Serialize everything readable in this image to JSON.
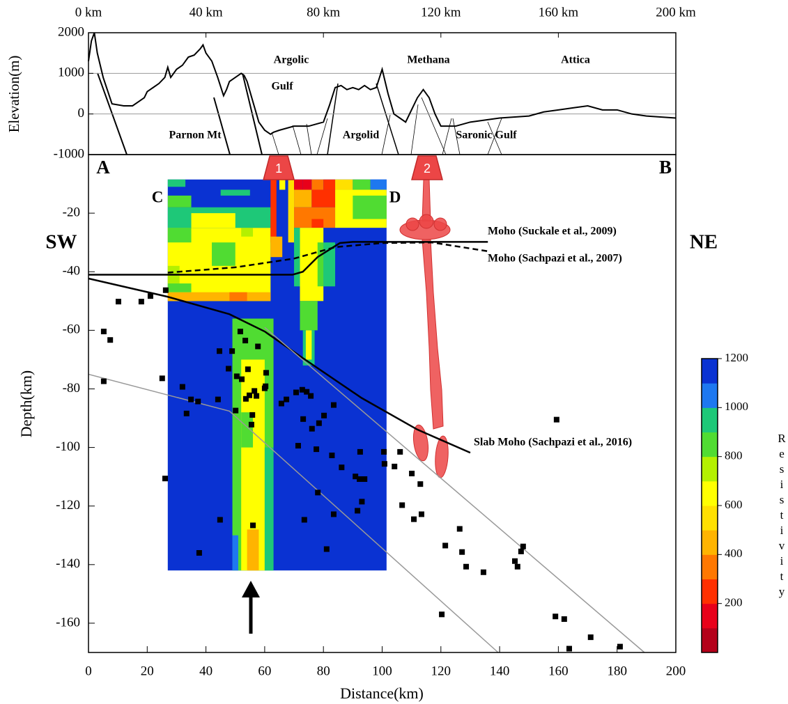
{
  "chart_data": [
    {
      "type": "line",
      "ylabel": "Elevation(m)",
      "xlim": [
        0,
        200
      ],
      "ylim": [
        -1000,
        2000
      ],
      "xticks": [
        {
          "value": 0,
          "label": "0 km"
        },
        {
          "value": 40,
          "label": "40 km"
        },
        {
          "value": 80,
          "label": "80 km"
        },
        {
          "value": 120,
          "label": "120 km"
        },
        {
          "value": 160,
          "label": "160 km"
        },
        {
          "value": 200,
          "label": "200 km"
        }
      ],
      "yticks": [
        -1000,
        0,
        1000,
        2000
      ],
      "grid": true,
      "color": "#000000",
      "x": [
        0,
        1,
        2,
        3,
        5,
        8,
        12,
        15,
        17,
        19,
        20,
        22,
        24,
        26,
        27,
        28,
        30,
        32,
        34,
        36,
        38,
        39,
        40,
        42,
        44,
        46,
        47,
        48,
        50,
        52,
        53,
        54,
        56,
        58,
        60,
        62,
        63,
        65,
        70,
        75,
        80,
        82,
        84,
        86,
        88,
        90,
        92,
        94,
        96,
        98,
        100,
        102,
        104,
        106,
        108,
        110,
        112,
        114,
        116,
        118,
        120,
        125,
        130,
        140,
        150,
        155,
        160,
        165,
        170,
        175,
        180,
        185,
        190,
        200
      ],
      "values": [
        1300,
        1800,
        2000,
        1500,
        900,
        250,
        200,
        200,
        300,
        400,
        550,
        650,
        750,
        900,
        1150,
        900,
        1100,
        1200,
        1400,
        1450,
        1600,
        1700,
        1500,
        1300,
        900,
        450,
        600,
        800,
        900,
        1000,
        950,
        800,
        300,
        -200,
        -400,
        -500,
        -450,
        -400,
        -300,
        -300,
        -200,
        200,
        650,
        700,
        600,
        650,
        600,
        700,
        600,
        650,
        1100,
        500,
        0,
        -100,
        -200,
        100,
        400,
        600,
        400,
        0,
        -300,
        -300,
        -200,
        -100,
        -50,
        50,
        100,
        150,
        200,
        100,
        100,
        0,
        -50,
        -100
      ],
      "annotations": [
        "Argolic",
        "Gulf",
        "Methana",
        "Attica",
        "Parnon Mt",
        "Argolid",
        "Saronic Gulf"
      ]
    },
    {
      "type": "section",
      "xlabel": "Distance(km)",
      "ylabel": "Depth(km)",
      "xlim": [
        0,
        200
      ],
      "ylim": [
        -170,
        0
      ],
      "xticks": [
        0,
        20,
        40,
        60,
        80,
        100,
        120,
        140,
        160,
        180,
        200
      ],
      "yticks": [
        -160,
        -140,
        -120,
        -100,
        -80,
        -60,
        -40,
        -20
      ],
      "annotations": [
        "A",
        "B",
        "C",
        "D",
        "SW",
        "NE"
      ],
      "volcanoes": [
        {
          "label": "1",
          "x": 64.8
        },
        {
          "label": "2",
          "x": 115.3
        }
      ],
      "cells": [
        {
          "x": [
            27,
            101.5
          ],
          "y": [
            -8.5,
            -142
          ],
          "value": 1200
        },
        {
          "x": [
            27,
            62
          ],
          "y": [
            -25,
            -50
          ],
          "value": 600
        },
        {
          "x": [
            27,
            35
          ],
          "y": [
            -25,
            -30
          ],
          "value": 800
        },
        {
          "x": [
            42,
            50
          ],
          "y": [
            -30,
            -38
          ],
          "value": 800
        },
        {
          "x": [
            27,
            31
          ],
          "y": [
            -38,
            -44
          ],
          "value": 700
        },
        {
          "x": [
            52,
            56
          ],
          "y": [
            -25,
            -28
          ],
          "value": 700
        },
        {
          "x": [
            27,
            62
          ],
          "y": [
            -18,
            -25
          ],
          "value": 900
        },
        {
          "x": [
            35,
            50
          ],
          "y": [
            -20,
            -25
          ],
          "value": 650
        },
        {
          "x": [
            27,
            33
          ],
          "y": [
            -8.5,
            -11
          ],
          "value": 950
        },
        {
          "x": [
            27,
            35
          ],
          "y": [
            -14,
            -18
          ],
          "value": 800
        },
        {
          "x": [
            45,
            55
          ],
          "y": [
            -12,
            -14
          ],
          "value": 900
        },
        {
          "x": [
            27,
            62
          ],
          "y": [
            -47,
            -50
          ],
          "value": 450
        },
        {
          "x": [
            27,
            35
          ],
          "y": [
            -44,
            -47
          ],
          "value": 800
        },
        {
          "x": [
            48,
            54
          ],
          "y": [
            -47,
            -50
          ],
          "value": 350
        },
        {
          "x": [
            62,
            64
          ],
          "y": [
            -8.5,
            -30
          ],
          "value": 250
        },
        {
          "x": [
            62,
            66
          ],
          "y": [
            -28,
            -35
          ],
          "value": 400
        },
        {
          "x": [
            65,
            67
          ],
          "y": [
            -8.5,
            -12
          ],
          "value": 600
        },
        {
          "x": [
            68,
            70
          ],
          "y": [
            -8.5,
            -30
          ],
          "value": 550
        },
        {
          "x": [
            70,
            73
          ],
          "y": [
            -8.5,
            -12
          ],
          "value": 150
        },
        {
          "x": [
            73,
            76
          ],
          "y": [
            -8.5,
            -12
          ],
          "value": 100
        },
        {
          "x": [
            76,
            80
          ],
          "y": [
            -8.5,
            -12
          ],
          "value": 350
        },
        {
          "x": [
            80,
            84
          ],
          "y": [
            -8.5,
            -12
          ],
          "value": 200
        },
        {
          "x": [
            84,
            90
          ],
          "y": [
            -8.5,
            -12
          ],
          "value": 550
        },
        {
          "x": [
            90,
            96
          ],
          "y": [
            -8.5,
            -12
          ],
          "value": 800
        },
        {
          "x": [
            96,
            101.5
          ],
          "y": [
            -8.5,
            -12
          ],
          "value": 1050
        },
        {
          "x": [
            70,
            76
          ],
          "y": [
            -12,
            -18
          ],
          "value": 400
        },
        {
          "x": [
            76,
            84
          ],
          "y": [
            -12,
            -18
          ],
          "value": 200
        },
        {
          "x": [
            70,
            84
          ],
          "y": [
            -18,
            -25
          ],
          "value": 350
        },
        {
          "x": [
            84,
            101.5
          ],
          "y": [
            -12,
            -25
          ],
          "value": 600
        },
        {
          "x": [
            90,
            101.5
          ],
          "y": [
            -14,
            -22
          ],
          "value": 850
        },
        {
          "x": [
            76,
            80
          ],
          "y": [
            -22,
            -25
          ],
          "value": 200
        },
        {
          "x": [
            72,
            80
          ],
          "y": [
            -25,
            -50
          ],
          "value": 600
        },
        {
          "x": [
            70,
            72
          ],
          "y": [
            -25,
            -45
          ],
          "value": 900
        },
        {
          "x": [
            78,
            80
          ],
          "y": [
            -30,
            -45
          ],
          "value": 850
        },
        {
          "x": [
            80,
            84
          ],
          "y": [
            -30,
            -45
          ],
          "value": 900
        },
        {
          "x": [
            72,
            78
          ],
          "y": [
            -50,
            -60
          ],
          "value": 850
        },
        {
          "x": [
            73,
            77
          ],
          "y": [
            -60,
            -72
          ],
          "value": 900
        },
        {
          "x": [
            74,
            76
          ],
          "y": [
            -60,
            -70
          ],
          "value": 650
        },
        {
          "x": [
            49,
            63
          ],
          "y": [
            -56,
            -142
          ],
          "value": 850
        },
        {
          "x": [
            52,
            60
          ],
          "y": [
            -70,
            -142
          ],
          "value": 650
        },
        {
          "x": [
            52,
            56
          ],
          "y": [
            -88,
            -100
          ],
          "value": 800
        },
        {
          "x": [
            54,
            58
          ],
          "y": [
            -128,
            -142
          ],
          "value": 450
        },
        {
          "x": [
            60,
            63
          ],
          "y": [
            -100,
            -142
          ],
          "value": 900
        },
        {
          "x": [
            49,
            51
          ],
          "y": [
            -130,
            -142
          ],
          "value": 1050
        }
      ],
      "lines": [
        {
          "name": "Moho (Suckale et al., 2009)",
          "color": "#000000",
          "dash": false,
          "x": [
            0,
            69.5,
            73,
            78,
            85.6,
            90,
            136
          ],
          "y": [
            -41,
            -41,
            -40,
            -35,
            -30.2,
            -29.8,
            -29.8
          ]
        },
        {
          "name": "Moho (Sachpazi et al., 2007)",
          "color": "#000000",
          "dash": true,
          "x": [
            27,
            50,
            70,
            84,
            100,
            117,
            136
          ],
          "y": [
            -40.3,
            -38.5,
            -35.5,
            -31.6,
            -30.2,
            -30,
            -33
          ]
        },
        {
          "name": "Slab Moho (Sachpazi et al., 2016)",
          "color": "#000000",
          "dash": false,
          "x": [
            0,
            26.8,
            48,
            60,
            72,
            93,
            112,
            130
          ],
          "y": [
            -42.3,
            -48.5,
            -54.5,
            -60.4,
            -68.8,
            -83.1,
            -93.9,
            -101.8
          ]
        },
        {
          "color": "#999999",
          "dash": false,
          "x": [
            60,
            189.3
          ],
          "y": [
            -59,
            -170
          ]
        },
        {
          "color": "#999999",
          "dash": false,
          "x": [
            0,
            48,
            139.5
          ],
          "y": [
            -75,
            -87.6,
            -170
          ]
        }
      ],
      "earthquakes": {
        "x": [
          5.2,
          7.4,
          10.2,
          18,
          21.1,
          26.3,
          5.2,
          25.1,
          26.1,
          32,
          34.9,
          33.4,
          37.3,
          37.7,
          44.6,
          44.1,
          44.8,
          47.7,
          48.9,
          50.5,
          50.1,
          51.7,
          52.2,
          53.4,
          54.3,
          53.6,
          54.8,
          55.5,
          55.8,
          57.7,
          56.5,
          57.2,
          56,
          60.5,
          60.3,
          60,
          65.7,
          67.4,
          70.7,
          72.8,
          74.3,
          75.7,
          73.1,
          76.1,
          78.5,
          80.2,
          83.5,
          71.4,
          77.6,
          82.9,
          86.2,
          78.1,
          73.5,
          83.5,
          81.1,
          90.9,
          92.3,
          94,
          92.5,
          93.1,
          91.6,
          100.6,
          100.8,
          104.2,
          106.1,
          110.1,
          113,
          106.8,
          113.4,
          110.8,
          121.5,
          126.4,
          127.2,
          128.6,
          134.5,
          145.2,
          146.1,
          147.3,
          148,
          120.3,
          159.4,
          159,
          162,
          163.7,
          171,
          181
        ],
        "y": [
          -60.4,
          -63.3,
          -50.2,
          -50.2,
          -48.3,
          -46.3,
          -77.4,
          -76.4,
          -110.6,
          -79.3,
          -83.6,
          -88.4,
          -84.3,
          -136,
          -67.1,
          -83.6,
          -124.7,
          -73.1,
          -67.1,
          -75.7,
          -87.4,
          -60.4,
          -76.7,
          -63.5,
          -73.3,
          -83.4,
          -82.2,
          -92.2,
          -88.9,
          -65.5,
          -80.7,
          -82.4,
          -126.6,
          -74.5,
          -79.1,
          -79.8,
          -85,
          -83.6,
          -81.2,
          -80.3,
          -81,
          -82.4,
          -90.3,
          -93.6,
          -91.7,
          -89.1,
          -85.5,
          -99.4,
          -100.6,
          -102.7,
          -106.8,
          -115.4,
          -124.7,
          -122.8,
          -134.7,
          -109.9,
          -110.8,
          -110.8,
          -101.5,
          -118.5,
          -121.6,
          -101.5,
          -105.6,
          -106.5,
          -101.5,
          -108.9,
          -112.5,
          -119.7,
          -122.8,
          -124.5,
          -133.5,
          -127.8,
          -135.7,
          -140.7,
          -142.6,
          -138.8,
          -140.7,
          -135.5,
          -133.8,
          -157,
          -90.5,
          -157.7,
          -158.6,
          -168.7,
          -164.8,
          -168
        ]
      },
      "colorbar": {
        "label": "Resistivity",
        "clim": [
          0,
          1200
        ],
        "ticks": [
          200,
          400,
          600,
          800,
          1000,
          1200
        ],
        "colors": [
          "#b4001a",
          "#e8001a",
          "#ff3000",
          "#ff7800",
          "#ffb400",
          "#ffe000",
          "#ffff00",
          "#b4f000",
          "#50dc32",
          "#1ec878",
          "#1e78f0",
          "#0a32d2"
        ]
      }
    }
  ]
}
